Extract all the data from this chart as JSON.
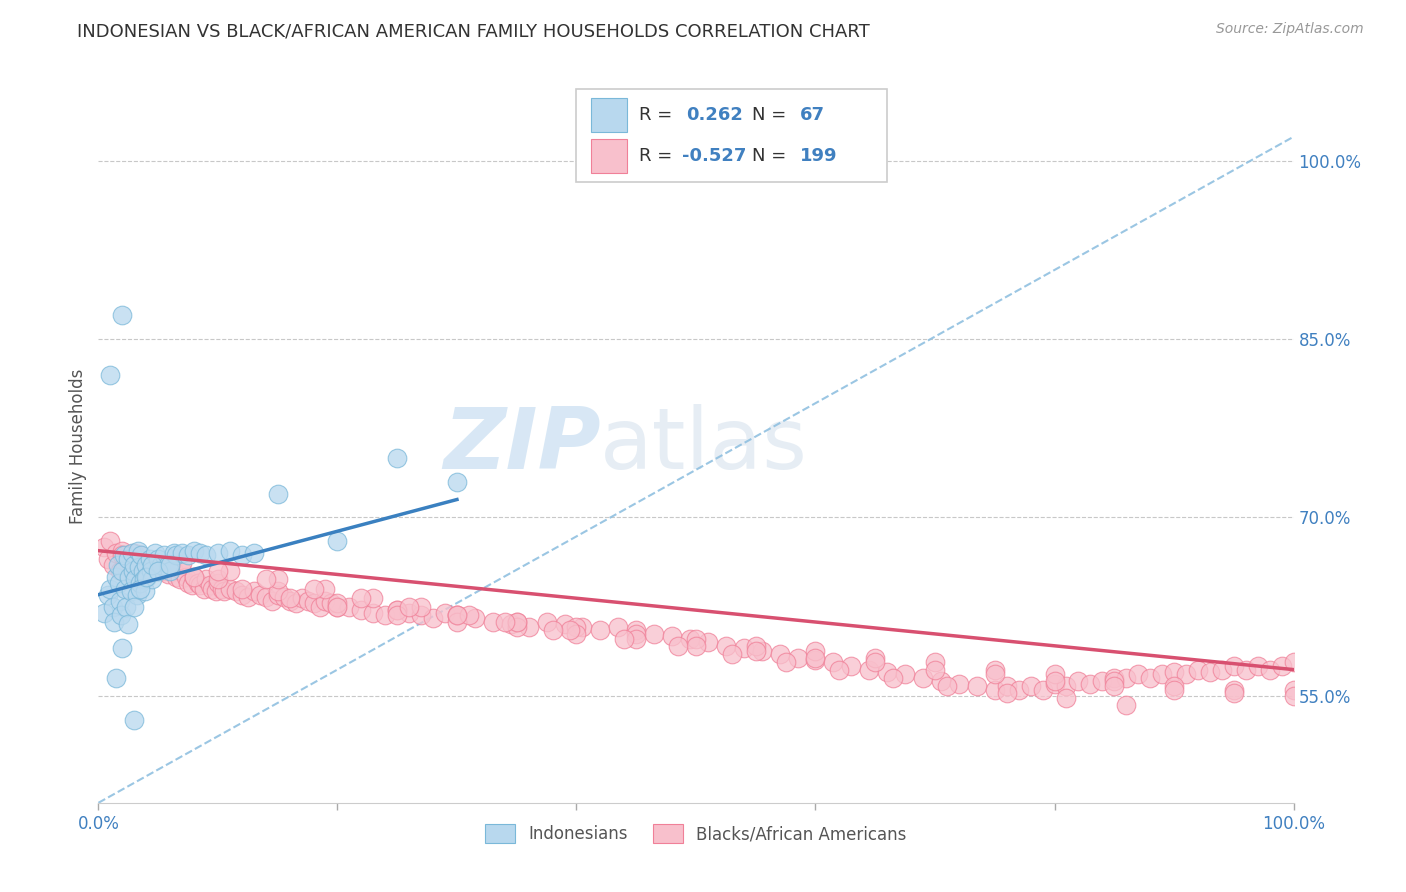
{
  "title": "INDONESIAN VS BLACK/AFRICAN AMERICAN FAMILY HOUSEHOLDS CORRELATION CHART",
  "source": "Source: ZipAtlas.com",
  "ylabel": "Family Households",
  "xlim": [
    0,
    1.0
  ],
  "ylim": [
    0.46,
    1.06
  ],
  "y_ticks_right": [
    0.55,
    0.7,
    0.85,
    1.0
  ],
  "y_tick_labels_right": [
    "55.0%",
    "70.0%",
    "85.0%",
    "100.0%"
  ],
  "blue_color": "#7ab8d9",
  "blue_fill": "#b8d8ee",
  "pink_color": "#f08098",
  "pink_fill": "#f8c0cc",
  "trend_blue": "#3a80c0",
  "trend_pink": "#d85070",
  "dashed_line_color": "#90c0e0",
  "grid_color": "#c8c8c8",
  "axis_label_color": "#4080c0",
  "watermark_color": "#d5e8f5",
  "indonesian_x": [
    0.005,
    0.008,
    0.01,
    0.012,
    0.013,
    0.015,
    0.016,
    0.017,
    0.018,
    0.019,
    0.02,
    0.021,
    0.022,
    0.023,
    0.025,
    0.026,
    0.027,
    0.028,
    0.029,
    0.03,
    0.031,
    0.032,
    0.033,
    0.034,
    0.035,
    0.036,
    0.037,
    0.038,
    0.039,
    0.04,
    0.041,
    0.043,
    0.044,
    0.045,
    0.047,
    0.05,
    0.052,
    0.055,
    0.058,
    0.06,
    0.063,
    0.065,
    0.07,
    0.075,
    0.08,
    0.085,
    0.09,
    0.1,
    0.11,
    0.12,
    0.13,
    0.015,
    0.02,
    0.025,
    0.03,
    0.035,
    0.04,
    0.045,
    0.05,
    0.06,
    0.15,
    0.2,
    0.25,
    0.3,
    0.01,
    0.02,
    0.03
  ],
  "indonesian_y": [
    0.62,
    0.635,
    0.64,
    0.625,
    0.612,
    0.65,
    0.66,
    0.645,
    0.63,
    0.618,
    0.655,
    0.668,
    0.64,
    0.625,
    0.665,
    0.65,
    0.638,
    0.67,
    0.655,
    0.66,
    0.648,
    0.635,
    0.672,
    0.658,
    0.645,
    0.668,
    0.655,
    0.648,
    0.638,
    0.66,
    0.65,
    0.665,
    0.655,
    0.648,
    0.67,
    0.665,
    0.66,
    0.668,
    0.66,
    0.655,
    0.67,
    0.668,
    0.67,
    0.668,
    0.672,
    0.67,
    0.668,
    0.67,
    0.672,
    0.668,
    0.67,
    0.565,
    0.59,
    0.61,
    0.625,
    0.64,
    0.65,
    0.66,
    0.655,
    0.66,
    0.72,
    0.68,
    0.75,
    0.73,
    0.82,
    0.87,
    0.53
  ],
  "black_x": [
    0.005,
    0.008,
    0.01,
    0.012,
    0.015,
    0.018,
    0.02,
    0.022,
    0.025,
    0.028,
    0.03,
    0.033,
    0.035,
    0.038,
    0.04,
    0.043,
    0.045,
    0.048,
    0.05,
    0.053,
    0.055,
    0.058,
    0.06,
    0.063,
    0.065,
    0.068,
    0.07,
    0.073,
    0.075,
    0.078,
    0.08,
    0.083,
    0.085,
    0.088,
    0.09,
    0.093,
    0.095,
    0.098,
    0.1,
    0.103,
    0.105,
    0.11,
    0.115,
    0.12,
    0.125,
    0.13,
    0.135,
    0.14,
    0.145,
    0.15,
    0.155,
    0.16,
    0.165,
    0.17,
    0.175,
    0.18,
    0.185,
    0.19,
    0.195,
    0.2,
    0.21,
    0.22,
    0.23,
    0.24,
    0.25,
    0.26,
    0.27,
    0.28,
    0.29,
    0.3,
    0.315,
    0.33,
    0.345,
    0.36,
    0.375,
    0.39,
    0.405,
    0.42,
    0.435,
    0.45,
    0.465,
    0.48,
    0.495,
    0.51,
    0.525,
    0.54,
    0.555,
    0.57,
    0.585,
    0.6,
    0.615,
    0.63,
    0.645,
    0.66,
    0.675,
    0.69,
    0.705,
    0.72,
    0.735,
    0.75,
    0.76,
    0.77,
    0.78,
    0.79,
    0.8,
    0.81,
    0.82,
    0.83,
    0.84,
    0.85,
    0.86,
    0.87,
    0.88,
    0.89,
    0.9,
    0.91,
    0.92,
    0.93,
    0.94,
    0.95,
    0.96,
    0.97,
    0.98,
    0.99,
    1.0,
    0.05,
    0.1,
    0.15,
    0.2,
    0.25,
    0.3,
    0.35,
    0.4,
    0.45,
    0.5,
    0.55,
    0.6,
    0.65,
    0.7,
    0.75,
    0.8,
    0.85,
    0.9,
    0.95,
    1.0,
    0.08,
    0.12,
    0.16,
    0.2,
    0.25,
    0.3,
    0.35,
    0.4,
    0.45,
    0.5,
    0.55,
    0.6,
    0.65,
    0.7,
    0.75,
    0.8,
    0.85,
    0.9,
    0.95,
    1.0,
    0.03,
    0.07,
    0.11,
    0.15,
    0.19,
    0.23,
    0.27,
    0.31,
    0.35,
    0.395,
    0.44,
    0.485,
    0.53,
    0.575,
    0.62,
    0.665,
    0.71,
    0.76,
    0.81,
    0.86,
    0.02,
    0.06,
    0.1,
    0.14,
    0.18,
    0.22,
    0.26,
    0.3,
    0.34,
    0.38
  ],
  "black_y": [
    0.675,
    0.665,
    0.68,
    0.66,
    0.67,
    0.655,
    0.672,
    0.66,
    0.668,
    0.658,
    0.665,
    0.66,
    0.668,
    0.655,
    0.662,
    0.658,
    0.66,
    0.655,
    0.662,
    0.658,
    0.655,
    0.652,
    0.66,
    0.655,
    0.65,
    0.648,
    0.655,
    0.65,
    0.645,
    0.643,
    0.65,
    0.645,
    0.643,
    0.64,
    0.648,
    0.643,
    0.64,
    0.638,
    0.645,
    0.64,
    0.638,
    0.64,
    0.638,
    0.635,
    0.633,
    0.638,
    0.635,
    0.633,
    0.63,
    0.635,
    0.633,
    0.63,
    0.628,
    0.632,
    0.63,
    0.628,
    0.625,
    0.63,
    0.628,
    0.625,
    0.625,
    0.622,
    0.62,
    0.618,
    0.622,
    0.62,
    0.618,
    0.615,
    0.62,
    0.618,
    0.615,
    0.612,
    0.61,
    0.608,
    0.612,
    0.61,
    0.608,
    0.605,
    0.608,
    0.605,
    0.602,
    0.6,
    0.598,
    0.595,
    0.592,
    0.59,
    0.588,
    0.585,
    0.582,
    0.58,
    0.578,
    0.575,
    0.572,
    0.57,
    0.568,
    0.565,
    0.562,
    0.56,
    0.558,
    0.555,
    0.558,
    0.555,
    0.558,
    0.555,
    0.56,
    0.558,
    0.562,
    0.56,
    0.562,
    0.565,
    0.565,
    0.568,
    0.565,
    0.568,
    0.57,
    0.568,
    0.572,
    0.57,
    0.572,
    0.575,
    0.572,
    0.575,
    0.572,
    0.575,
    0.578,
    0.66,
    0.648,
    0.638,
    0.628,
    0.622,
    0.618,
    0.612,
    0.608,
    0.602,
    0.598,
    0.592,
    0.588,
    0.582,
    0.578,
    0.572,
    0.568,
    0.562,
    0.558,
    0.555,
    0.555,
    0.65,
    0.64,
    0.632,
    0.625,
    0.618,
    0.612,
    0.608,
    0.602,
    0.598,
    0.592,
    0.588,
    0.582,
    0.578,
    0.572,
    0.568,
    0.562,
    0.558,
    0.555,
    0.552,
    0.55,
    0.67,
    0.662,
    0.655,
    0.648,
    0.64,
    0.632,
    0.625,
    0.618,
    0.612,
    0.605,
    0.598,
    0.592,
    0.585,
    0.578,
    0.572,
    0.565,
    0.558,
    0.552,
    0.548,
    0.542,
    0.668,
    0.66,
    0.655,
    0.648,
    0.64,
    0.632,
    0.625,
    0.618,
    0.612,
    0.605
  ]
}
